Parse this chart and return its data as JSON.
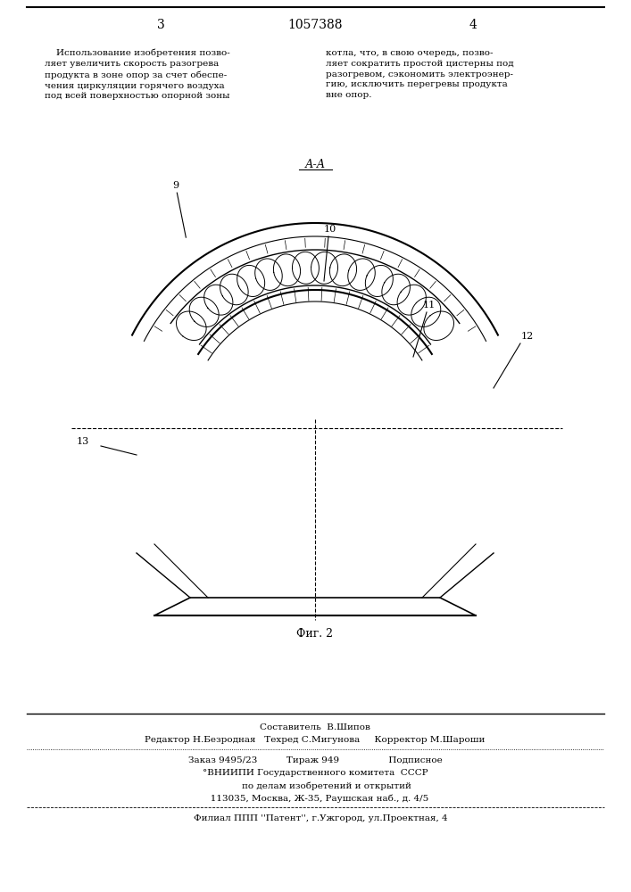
{
  "page_number_left": "3",
  "patent_number": "1057388",
  "page_number_right": "4",
  "text_left": "    Использование изобретения позво-\nляет увеличить скорость разогрева\nпродукта в зоне опор за счет обеспе-\nчения циркуляции горячего воздуха\nпод всей поверхностью опорной зоны",
  "text_right": "котла, что, в свою очередь, позво-\nляет сократить простой цистерны под\nразогревом, сэкономить электроэнер-\nгию, исключить перегревы продукта\nвне опор.",
  "section_label": "А-А",
  "fig_label": "Фиг. 2",
  "label_9": "9",
  "label_10": "10",
  "label_11": "11",
  "label_12": "12",
  "label_13": "13",
  "footer_line1": "Составитель  В.Шипов",
  "footer_line2": "Редактор Н.Безродная   Техред С.Мигунова     Корректор М.Шароши",
  "footer_line3": "Заказ 9495/23          Тираж 949                 Подписное",
  "footer_line4": "°ВНИИПИ Государственного комитета  СССР",
  "footer_line5": "        по делам изобретений и открытий",
  "footer_line6": "   113035, Москва, Ж-35, Раушская наб., д. 4/5",
  "footer_dashes": "- - - - - - - - - - - - - - - - - - - - - - - - - - - - - - - - - - - - - - - - - - - -",
  "footer_line7": "    Филиал ППП ''Патент'', г.Ужгород, ул.Проектная, 4",
  "bg_color": "#ffffff",
  "text_color": "#000000",
  "line_color": "#000000"
}
